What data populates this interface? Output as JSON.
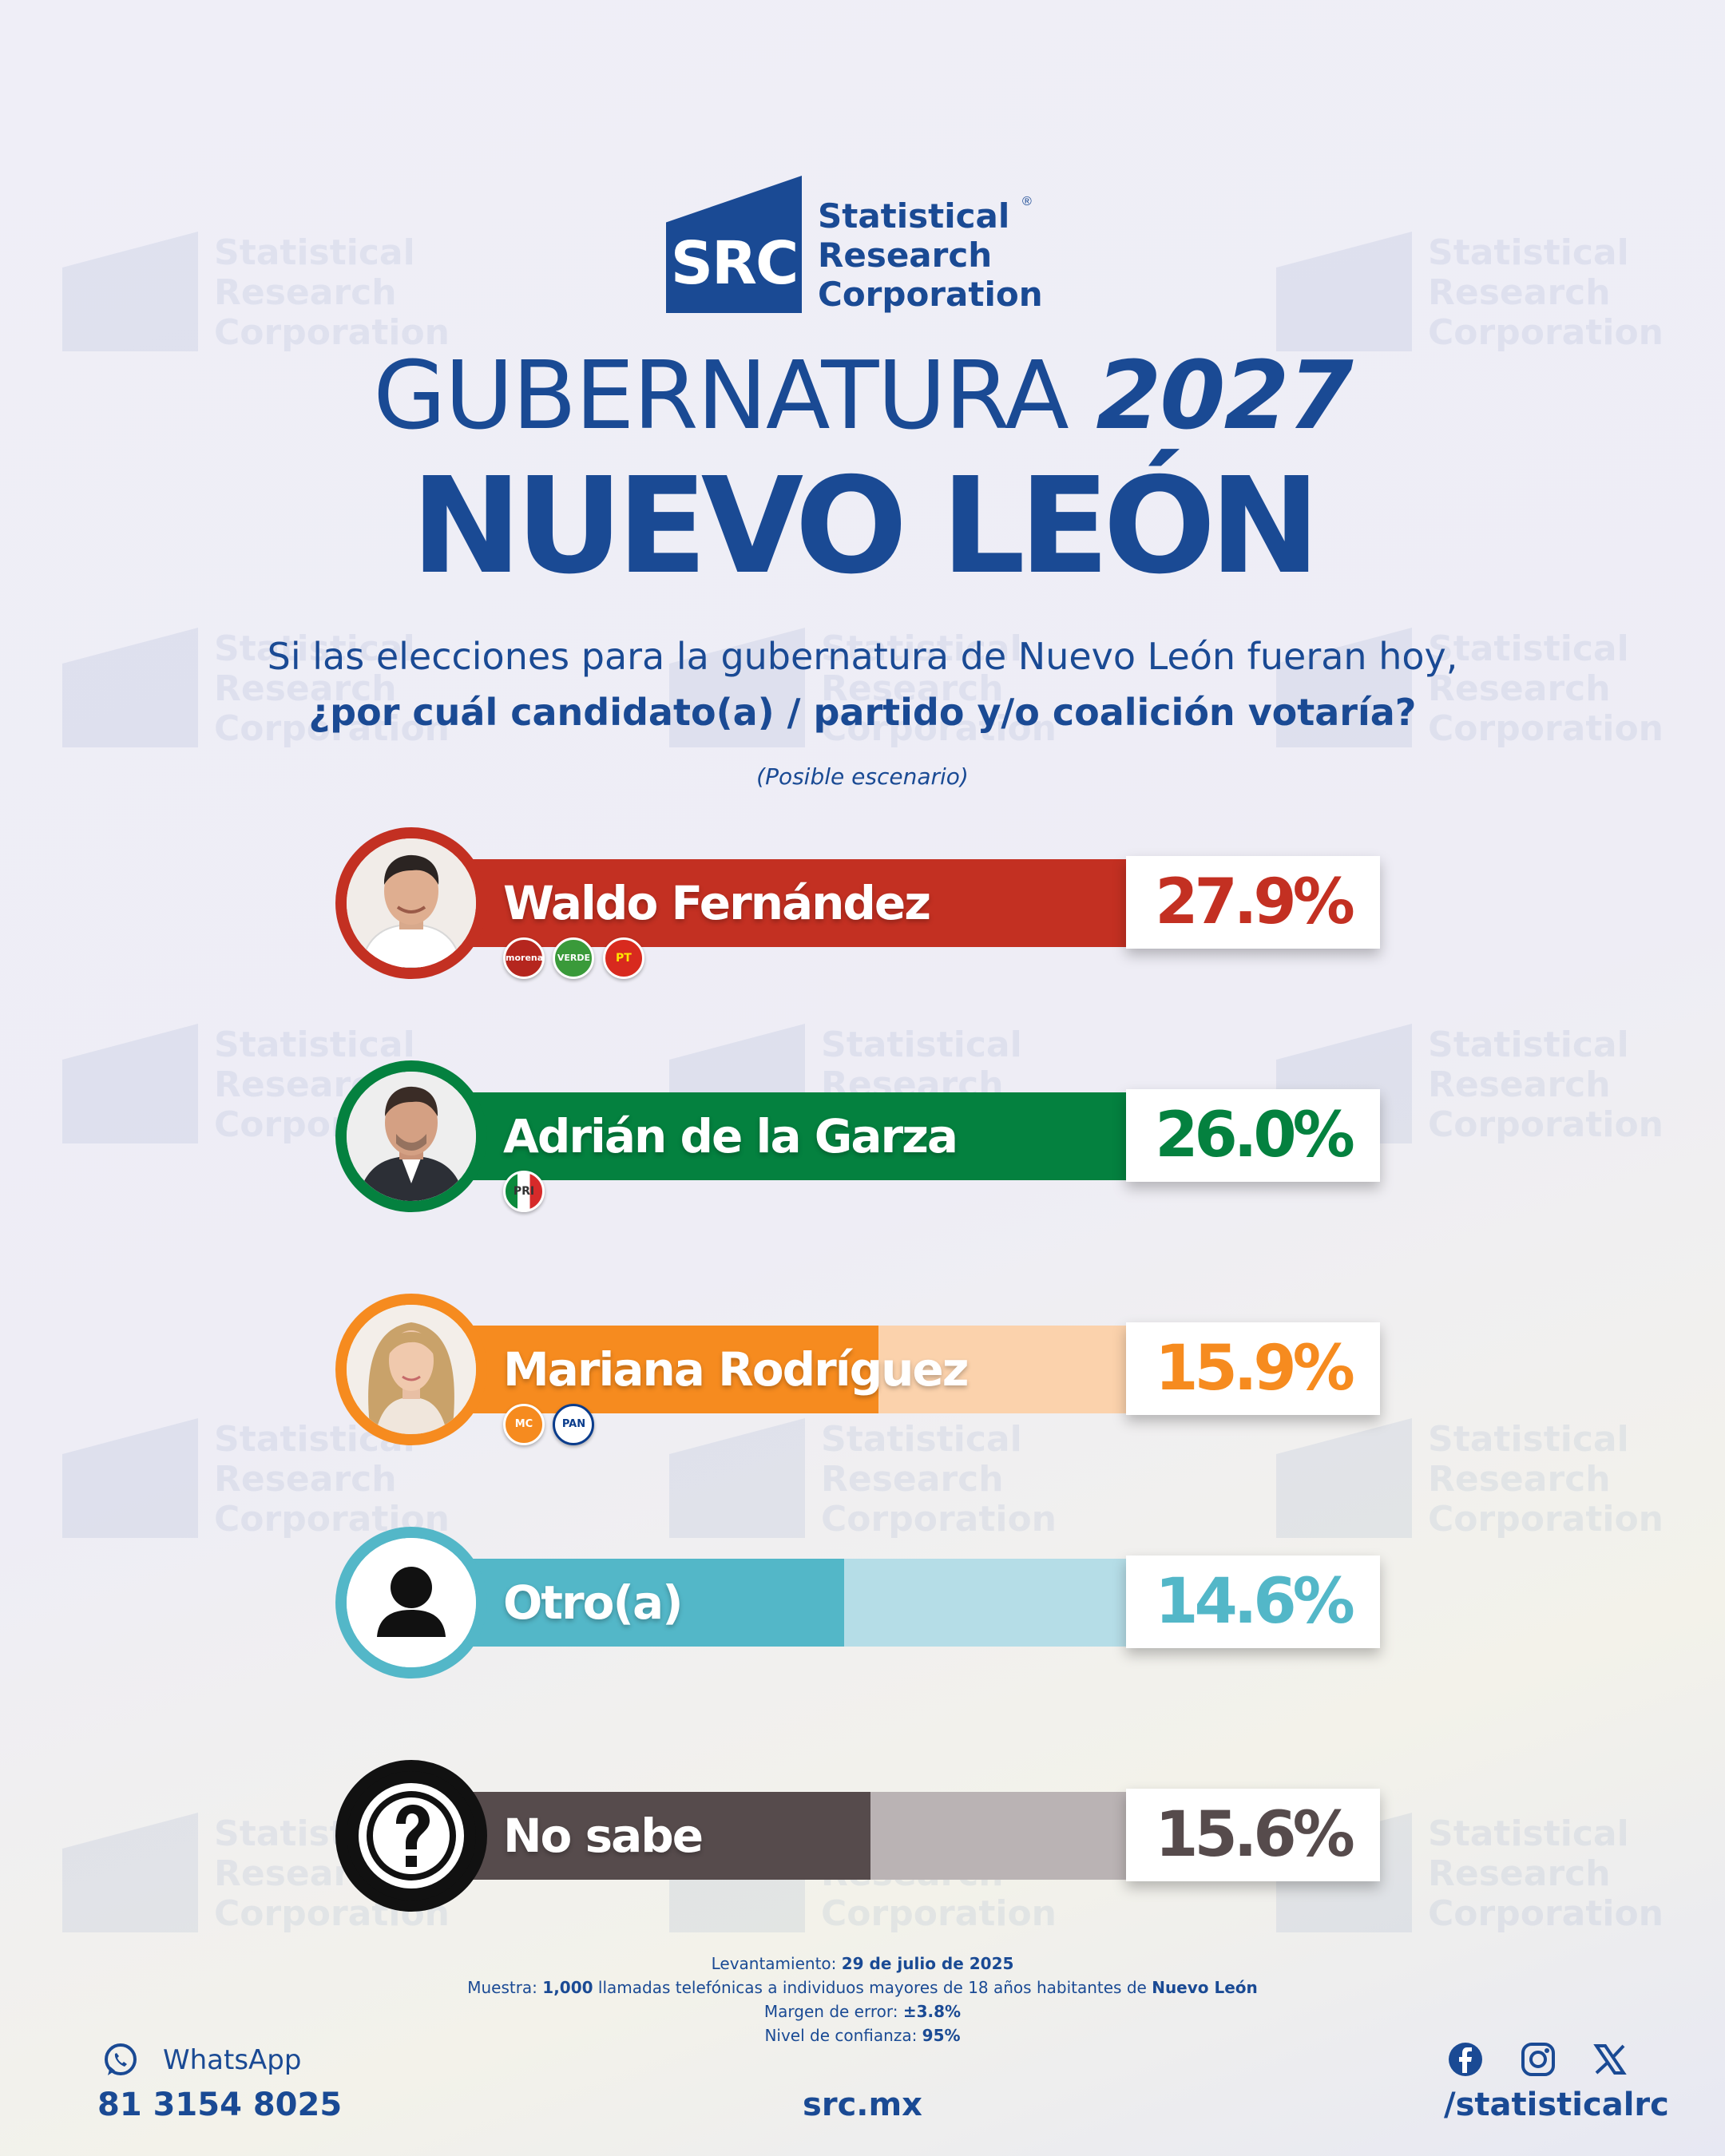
{
  "brand": {
    "logo_text": "SRC",
    "name_lines": [
      "Statistical",
      "Research",
      "Corporation"
    ],
    "registered_mark": "®"
  },
  "title": {
    "line1_word": "GUBERNATURA",
    "line1_year": "2027",
    "line2": "NUEVO LEÓN"
  },
  "question": {
    "line1": "Si las elecciones para la gubernatura de Nuevo León fueran hoy,",
    "line2": "¿por cuál candidato(a) / partido y/o coalición votaría?",
    "note": "(Posible escenario)"
  },
  "chart_data": {
    "type": "bar",
    "orientation": "horizontal",
    "categories": [
      "Waldo Fernández",
      "Adrián de la Garza",
      "Mariana Rodríguez",
      "Otro(a)",
      "No sabe"
    ],
    "values": [
      27.9,
      26.0,
      15.9,
      14.6,
      15.6
    ],
    "value_labels": [
      "27.9%",
      "26.0%",
      "15.9%",
      "14.6%",
      "15.6%"
    ],
    "unit": "%",
    "colors": [
      "#c33022",
      "#04813f",
      "#f68b1f",
      "#53b7c8",
      "#564b4c"
    ],
    "track_colors": [
      "#e9b9ba",
      "#a9d3c0",
      "#fbd2ac",
      "#b5dde7",
      "#bab3b4"
    ],
    "party_badges": [
      [
        "morena",
        "VERDE",
        "PT"
      ],
      [
        "PRI"
      ],
      [
        "MC",
        "PAN"
      ],
      [],
      []
    ],
    "avatar_icons": [
      "candidate-photo-icon",
      "candidate-photo-icon",
      "candidate-photo-icon",
      "person-silhouette-icon",
      "question-mark-icon"
    ],
    "xlim": [
      0,
      30
    ]
  },
  "methodology": {
    "survey_label": "Levantamiento:",
    "survey_value": "29 de julio de 2025",
    "sample_label": "Muestra:",
    "sample_value": "1,000",
    "sample_text": "llamadas telefónicas a individuos mayores de 18 años habitantes de",
    "sample_place": "Nuevo León",
    "error_label": "Margen de error:",
    "error_value": "±3.8%",
    "confidence_label": "Nivel de confianza:",
    "confidence_value": "95%"
  },
  "footer": {
    "whatsapp_label": "WhatsApp",
    "phone": "81 3154 8025",
    "website": "src.mx",
    "social_handle": "/statisticalrc",
    "social_icons": [
      "facebook-icon",
      "instagram-icon",
      "x-icon"
    ]
  }
}
